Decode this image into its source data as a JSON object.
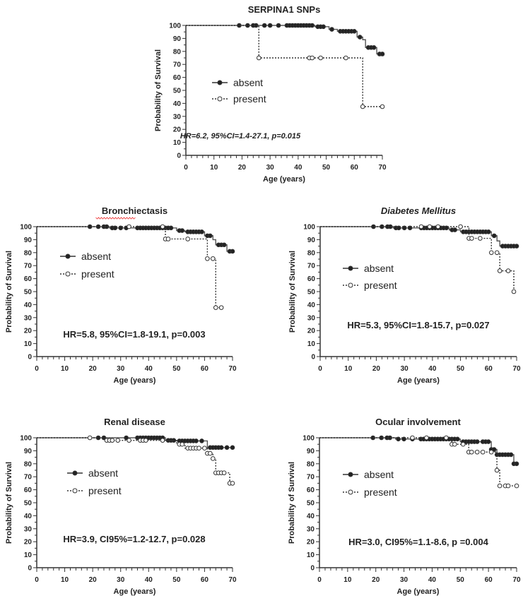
{
  "chart_data": [
    {
      "type": "line",
      "subtype": "kaplan-meier",
      "title": "SERPINA1 SNPs",
      "title_style": "bold",
      "xlabel": "Age (years)",
      "ylabel": "Probability of Survival",
      "xlim": [
        0,
        70
      ],
      "ylim": [
        0,
        100
      ],
      "xticks": [
        "0",
        "10",
        "20",
        "30",
        "40",
        "50",
        "60",
        "70"
      ],
      "yticks": [
        "0",
        "10",
        "20",
        "30",
        "40",
        "50",
        "60",
        "70",
        "80",
        "90",
        "100"
      ],
      "annotation": "HR=6.2, 95%CI=1.4-27.1, p=0.015",
      "annotation_italic": true,
      "legend": [
        "absent",
        "present"
      ],
      "series": [
        {
          "name": "absent",
          "steps": [
            [
              0,
              100
            ],
            [
              46,
              99
            ],
            [
              51,
              97
            ],
            [
              54,
              95.5
            ],
            [
              61,
              91
            ],
            [
              63,
              89
            ],
            [
              64,
              83
            ],
            [
              68,
              78
            ],
            [
              70,
              78
            ]
          ],
          "censored": [
            19,
            22,
            24,
            25,
            28,
            30,
            33,
            36,
            37,
            38,
            39,
            40,
            41,
            42,
            43,
            44,
            45,
            47,
            48,
            49,
            52,
            55,
            56,
            57,
            58,
            59,
            60,
            62,
            65,
            66,
            67,
            69,
            70
          ]
        },
        {
          "name": "present",
          "steps": [
            [
              0,
              100
            ],
            [
              26,
              75
            ],
            [
              63,
              37.5
            ],
            [
              70,
              37.5
            ]
          ],
          "censored": [
            26,
            44,
            45,
            48,
            57,
            63,
            70
          ]
        }
      ]
    },
    {
      "type": "line",
      "subtype": "kaplan-meier",
      "title": "Bronchiectasis",
      "title_style": "bold",
      "xlabel": "Age (years)",
      "ylabel": "Probability of Survival",
      "xlim": [
        0,
        70
      ],
      "ylim": [
        0,
        100
      ],
      "xticks": [
        "0",
        "10",
        "20",
        "30",
        "40",
        "50",
        "60",
        "70"
      ],
      "yticks": [
        "0",
        "10",
        "20",
        "30",
        "40",
        "50",
        "60",
        "70",
        "80",
        "90",
        "100"
      ],
      "annotation": "HR=5.8, 95%CI=1.8-19.1, p=0.003",
      "annotation_italic": false,
      "legend": [
        "absent",
        "present"
      ],
      "series": [
        {
          "name": "absent",
          "steps": [
            [
              0,
              100
            ],
            [
              26,
              99
            ],
            [
              50,
              97
            ],
            [
              53,
              96
            ],
            [
              60,
              93
            ],
            [
              63,
              90
            ],
            [
              64,
              86
            ],
            [
              68,
              81
            ],
            [
              70,
              81
            ]
          ],
          "censored": [
            19,
            22,
            24,
            25,
            27,
            28,
            30,
            32,
            36,
            37,
            38,
            39,
            40,
            41,
            42,
            43,
            44,
            45,
            46,
            47,
            48,
            51,
            52,
            54,
            55,
            56,
            57,
            58,
            59,
            61,
            62,
            65,
            66,
            67,
            69,
            70
          ]
        },
        {
          "name": "present",
          "steps": [
            [
              0,
              100
            ],
            [
              46,
              90.5
            ],
            [
              61,
              75.4
            ],
            [
              64,
              37.7
            ],
            [
              66,
              37.7
            ]
          ],
          "censored": [
            33,
            45,
            46,
            47,
            54,
            61,
            63,
            64,
            66
          ]
        }
      ]
    },
    {
      "type": "line",
      "subtype": "kaplan-meier",
      "title": "Diabetes Mellitus",
      "title_style": "bold-italic",
      "xlabel": "Age (years)",
      "ylabel": "Probability of Survival",
      "xlim": [
        0,
        70
      ],
      "ylim": [
        0,
        100
      ],
      "xticks": [
        "0",
        "10",
        "20",
        "30",
        "40",
        "50",
        "60",
        "70"
      ],
      "yticks": [
        "0",
        "10",
        "20",
        "30",
        "40",
        "50",
        "60",
        "70",
        "80",
        "90",
        "100"
      ],
      "annotation": "HR=5.3, 95%CI=1.8-15.7, p=0.027",
      "annotation_italic": false,
      "legend": [
        "absent",
        "present"
      ],
      "series": [
        {
          "name": "absent",
          "steps": [
            [
              0,
              100
            ],
            [
              26,
              99
            ],
            [
              46,
              97.5
            ],
            [
              50,
              96
            ],
            [
              61,
              93
            ],
            [
              63,
              89
            ],
            [
              64,
              85
            ],
            [
              70,
              85
            ]
          ],
          "censored": [
            19,
            22,
            24,
            25,
            27,
            28,
            30,
            32,
            36,
            37,
            38,
            39,
            40,
            41,
            42,
            43,
            44,
            45,
            47,
            48,
            51,
            52,
            53,
            54,
            55,
            56,
            57,
            58,
            59,
            60,
            62,
            65,
            66,
            67,
            68,
            69,
            70
          ]
        },
        {
          "name": "present",
          "steps": [
            [
              0,
              100
            ],
            [
              53,
              91
            ],
            [
              61,
              80
            ],
            [
              64,
              66
            ],
            [
              69,
              50
            ],
            [
              69.5,
              50
            ]
          ],
          "censored": [
            36,
            39,
            42,
            50,
            53,
            54,
            57,
            61,
            63,
            64,
            67,
            69
          ]
        }
      ]
    },
    {
      "type": "line",
      "subtype": "kaplan-meier",
      "title": "Renal disease",
      "title_style": "bold",
      "xlabel": "Age (years)",
      "ylabel": "Probability of Survival",
      "xlim": [
        0,
        70
      ],
      "ylim": [
        0,
        100
      ],
      "xticks": [
        "0",
        "10",
        "20",
        "30",
        "40",
        "50",
        "60",
        "70"
      ],
      "yticks": [
        "0",
        "10",
        "20",
        "30",
        "40",
        "50",
        "60",
        "70",
        "80",
        "90",
        "100"
      ],
      "annotation": "HR=3.9, CI95%=1.2-12.7, p=0.028",
      "annotation_italic": false,
      "legend": [
        "absent",
        "present"
      ],
      "series": [
        {
          "name": "absent",
          "steps": [
            [
              0,
              100
            ],
            [
              46,
              98
            ],
            [
              50,
              97.6
            ],
            [
              61,
              92.5
            ],
            [
              70,
              92.5
            ]
          ],
          "censored": [
            22,
            24,
            32,
            36,
            37,
            38,
            39,
            40,
            41,
            42,
            43,
            44,
            45,
            47,
            48,
            49,
            51,
            52,
            53,
            54,
            55,
            56,
            57,
            59,
            62,
            63,
            64,
            65,
            66,
            68,
            70
          ]
        },
        {
          "name": "present",
          "steps": [
            [
              0,
              100
            ],
            [
              25,
              98
            ],
            [
              50,
              95
            ],
            [
              53,
              92
            ],
            [
              61,
              88
            ],
            [
              63,
              84
            ],
            [
              64,
              73
            ],
            [
              69,
              65
            ],
            [
              70,
              65
            ]
          ],
          "censored": [
            19,
            25,
            26,
            27,
            29,
            33,
            37,
            38,
            39,
            45,
            51,
            52,
            54,
            55,
            56,
            57,
            58,
            60,
            61,
            62,
            63,
            64,
            65,
            66,
            67,
            69,
            70
          ]
        }
      ]
    },
    {
      "type": "line",
      "subtype": "kaplan-meier",
      "title": "Ocular involvement",
      "title_style": "bold",
      "xlabel": "Age (years)",
      "ylabel": "Probability of Survival",
      "xlim": [
        0,
        70
      ],
      "ylim": [
        0,
        100
      ],
      "xticks": [
        "0",
        "10",
        "20",
        "30",
        "40",
        "50",
        "60",
        "70"
      ],
      "yticks": [
        "0",
        "10",
        "20",
        "30",
        "40",
        "50",
        "60",
        "70",
        "80",
        "90",
        "100"
      ],
      "annotation": "HR=3.0, CI95%=1.1-8.6, p =0.004",
      "annotation_italic": false,
      "legend": [
        "absent",
        "present"
      ],
      "series": [
        {
          "name": "absent",
          "steps": [
            [
              0,
              100
            ],
            [
              27,
              99
            ],
            [
              50,
              97
            ],
            [
              61,
              91
            ],
            [
              63,
              87
            ],
            [
              69,
              80
            ],
            [
              70,
              80
            ]
          ],
          "censored": [
            19,
            22,
            24,
            25,
            28,
            30,
            33,
            36,
            37,
            38,
            39,
            40,
            41,
            42,
            43,
            44,
            45,
            46,
            47,
            48,
            49,
            51,
            52,
            53,
            54,
            55,
            56,
            58,
            59,
            60,
            61,
            62,
            63,
            64,
            65,
            66,
            67,
            68,
            69,
            70
          ]
        },
        {
          "name": "present",
          "steps": [
            [
              0,
              100
            ],
            [
              47,
              95
            ],
            [
              53,
              89
            ],
            [
              63,
              75
            ],
            [
              64,
              63
            ],
            [
              70,
              63
            ]
          ],
          "censored": [
            33,
            38,
            45,
            47,
            48,
            51,
            53,
            54,
            56,
            58,
            61,
            63,
            64,
            66,
            67,
            70
          ]
        }
      ]
    }
  ]
}
